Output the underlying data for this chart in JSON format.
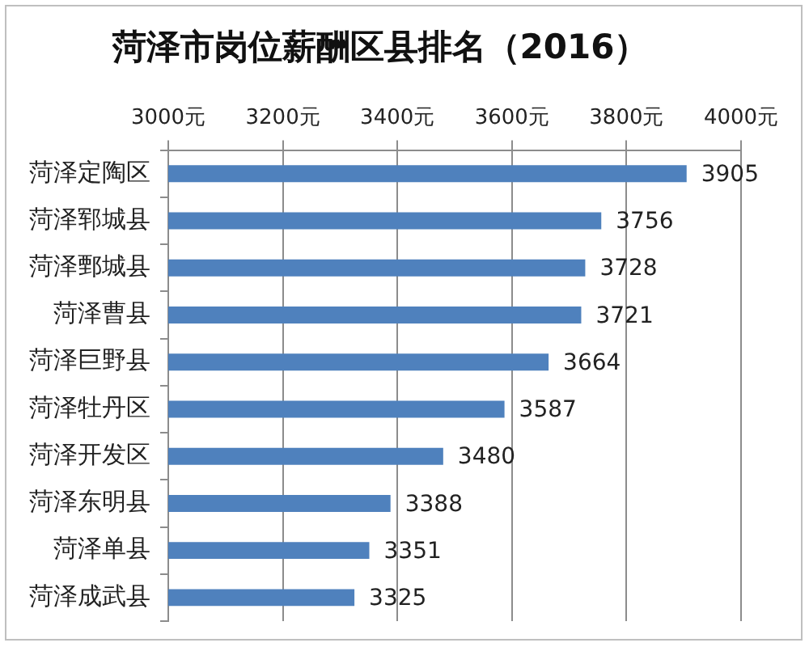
{
  "chart_data": {
    "type": "bar",
    "orientation": "horizontal",
    "title": "菏泽市岗位薪酬区县排名（2016）",
    "categories": [
      "菏泽定陶区",
      "菏泽郓城县",
      "菏泽鄄城县",
      "菏泽曹县",
      "菏泽巨野县",
      "菏泽牡丹区",
      "菏泽开发区",
      "菏泽东明县",
      "菏泽单县",
      "菏泽成武县"
    ],
    "values": [
      3905,
      3756,
      3728,
      3721,
      3664,
      3587,
      3480,
      3388,
      3351,
      3325
    ],
    "color": "#4f81bd",
    "xlim": [
      3000,
      4000
    ],
    "xticks": [
      {
        "value": 3000,
        "label": "3000元"
      },
      {
        "value": 3200,
        "label": "3200元"
      },
      {
        "value": 3400,
        "label": "3400元"
      },
      {
        "value": 3600,
        "label": "3600元"
      },
      {
        "value": 3800,
        "label": "3800元"
      },
      {
        "value": 4000,
        "label": "4000元"
      }
    ],
    "grid": "x",
    "data_labels": true
  }
}
